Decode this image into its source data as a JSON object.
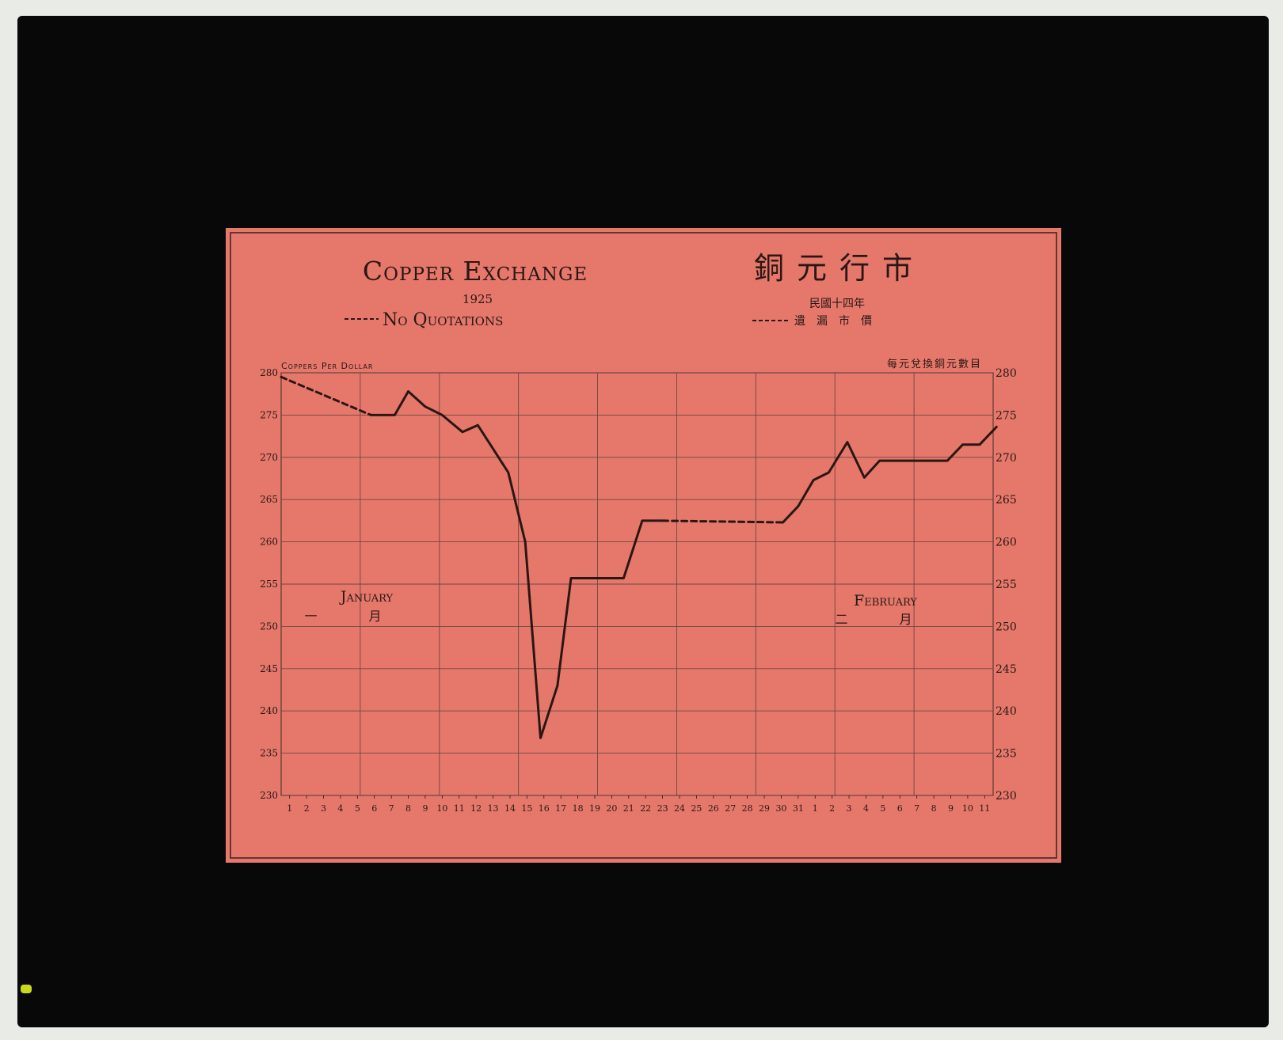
{
  "chart_data": {
    "type": "line",
    "title": "Copper Exchange",
    "year": "1925",
    "title_chinese": "銅元行市",
    "year_chinese": "民國十四年",
    "legend": {
      "no_quotations": "No Quotations",
      "no_quotations_chinese": "遺漏市價"
    },
    "ylabel": "Coppers Per Dollar",
    "ylabel_chinese": "每元兌換銅元數目",
    "ylim": [
      230,
      280
    ],
    "y_ticks": [
      "230",
      "235",
      "240",
      "245",
      "250",
      "255",
      "260",
      "265",
      "270",
      "275",
      "280"
    ],
    "y_ticks_right": [
      "230",
      "235",
      "240",
      "245",
      "250",
      "255",
      "260",
      "265",
      "270",
      "275",
      "280"
    ],
    "x_tick_labels": [
      "1",
      "2",
      "3",
      "4",
      "5",
      "6",
      "7",
      "8",
      "9",
      "10",
      "11",
      "12",
      "13",
      "14",
      "15",
      "16",
      "17",
      "18",
      "19",
      "20",
      "21",
      "22",
      "23",
      "24",
      "25",
      "26",
      "27",
      "28",
      "29",
      "30",
      "31",
      "1",
      "2",
      "3",
      "4",
      "5",
      "6",
      "7",
      "8",
      "9",
      "10",
      "11"
    ],
    "month_labels": [
      {
        "name": "January",
        "chinese": "一 月"
      },
      {
        "name": "February",
        "chinese": "二 月"
      }
    ],
    "grid": true,
    "series": [
      {
        "segments": [
          {
            "style": "dashed",
            "points": [
              [
                0,
                279.5
              ],
              [
                5.3,
                275
              ]
            ]
          },
          {
            "style": "solid",
            "points": [
              [
                5.3,
                275
              ],
              [
                6.7,
                275
              ],
              [
                7.5,
                277.8
              ],
              [
                8.5,
                276
              ],
              [
                9.5,
                275
              ],
              [
                10.7,
                273
              ],
              [
                11.6,
                273.8
              ],
              [
                12.5,
                271
              ],
              [
                13.4,
                268.2
              ],
              [
                14.4,
                260
              ],
              [
                15.3,
                236.8
              ],
              [
                16.3,
                243
              ],
              [
                17.1,
                255.7
              ],
              [
                20.2,
                255.7
              ],
              [
                21.3,
                262.5
              ],
              [
                22.5,
                262.5
              ]
            ]
          },
          {
            "style": "dashed",
            "points": [
              [
                22.5,
                262.5
              ],
              [
                29.6,
                262.3
              ]
            ]
          },
          {
            "style": "solid",
            "points": [
              [
                29.6,
                262.3
              ],
              [
                30.5,
                264.2
              ],
              [
                31.4,
                267.3
              ],
              [
                32.3,
                268.2
              ],
              [
                33.4,
                271.8
              ],
              [
                34.4,
                267.6
              ],
              [
                35.3,
                269.6
              ],
              [
                39.3,
                269.6
              ],
              [
                40.2,
                271.5
              ],
              [
                41.2,
                271.5
              ],
              [
                42.2,
                273.6
              ]
            ]
          }
        ]
      }
    ]
  }
}
